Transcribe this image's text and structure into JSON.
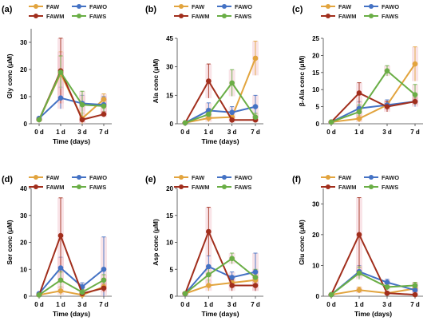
{
  "colors": {
    "FAW": "#E2A43E",
    "FAWO": "#4472C4",
    "FAWM": "#A12E1C",
    "FAWS": "#6AAE46",
    "error_shade": "#F2C4CC"
  },
  "chart_data": [
    {
      "type": "line",
      "panel_label": "(a)",
      "xlabel": "Time (days)",
      "ylabel": "Gly conc (μM)",
      "categories": [
        "0 d",
        "1 d",
        "3 d",
        "7 d"
      ],
      "ylim": [
        0,
        35
      ],
      "yticks": [
        0,
        10,
        20,
        30
      ],
      "legend": [
        "FAW",
        "FAWO",
        "FAWM",
        "FAWS"
      ],
      "series": [
        {
          "name": "FAW",
          "values": [
            1.5,
            18.5,
            2,
            9
          ],
          "errors": [
            0.5,
            8,
            2,
            2
          ]
        },
        {
          "name": "FAWO",
          "values": [
            2,
            9.5,
            7.5,
            7
          ],
          "errors": [
            0.5,
            4,
            3,
            3
          ]
        },
        {
          "name": "FAWM",
          "values": [
            1.5,
            19.5,
            1.5,
            3.5
          ],
          "errors": [
            0.5,
            12,
            1,
            1
          ]
        },
        {
          "name": "FAWS",
          "values": [
            1.5,
            19,
            7,
            6.5
          ],
          "errors": [
            0.5,
            6,
            5,
            3
          ]
        }
      ]
    },
    {
      "type": "line",
      "panel_label": "(b)",
      "xlabel": "Time (days)",
      "ylabel": "Ala conc (μM)",
      "categories": [
        "0 d",
        "1 d",
        "3 d",
        "7 d"
      ],
      "ylim": [
        0,
        45
      ],
      "yticks": [
        0,
        15,
        30,
        45
      ],
      "legend": [
        "FAW",
        "FAWO",
        "FAWM",
        "FAWS"
      ],
      "series": [
        {
          "name": "FAW",
          "values": [
            0.5,
            3,
            3.5,
            34.5
          ],
          "errors": [
            0.3,
            2,
            1.5,
            9
          ]
        },
        {
          "name": "FAWO",
          "values": [
            0.5,
            7,
            6,
            9
          ],
          "errors": [
            0.3,
            4,
            3,
            6
          ]
        },
        {
          "name": "FAWM",
          "values": [
            0.5,
            22.5,
            2,
            2
          ],
          "errors": [
            0.3,
            9,
            1.5,
            1
          ]
        },
        {
          "name": "FAWS",
          "values": [
            0.5,
            5,
            21.5,
            3.5
          ],
          "errors": [
            0.3,
            3,
            7,
            2
          ]
        }
      ]
    },
    {
      "type": "line",
      "panel_label": "(c)",
      "xlabel": "",
      "ylabel": "β-Ala conc (μM)",
      "categories": [
        "0 d",
        "1 d",
        "3 d",
        "7 d"
      ],
      "ylim": [
        0,
        25
      ],
      "yticks": [
        0,
        5,
        10,
        15,
        20,
        25
      ],
      "legend": [
        "FAW",
        "FAWO",
        "FAWM",
        "FAWS"
      ],
      "series": [
        {
          "name": "FAW",
          "values": [
            0.5,
            1.5,
            5.5,
            17.5
          ],
          "errors": [
            0.3,
            1,
            1,
            5
          ]
        },
        {
          "name": "FAWO",
          "values": [
            0.5,
            4.5,
            5.5,
            6.5
          ],
          "errors": [
            0.3,
            2,
            1.5,
            1.5
          ]
        },
        {
          "name": "FAWM",
          "values": [
            0.5,
            9,
            5,
            6.5
          ],
          "errors": [
            0.3,
            3,
            1.5,
            1
          ]
        },
        {
          "name": "FAWS",
          "values": [
            0.5,
            3.5,
            15.5,
            8.5
          ],
          "errors": [
            0.3,
            2,
            1.5,
            3
          ]
        }
      ]
    },
    {
      "type": "line",
      "panel_label": "(d)",
      "xlabel": "Time (days)",
      "ylabel": "Ser conc (μM)",
      "categories": [
        "0 d",
        "1 d",
        "3 d",
        "7 d"
      ],
      "ylim": [
        0,
        40
      ],
      "yticks": [
        0,
        10,
        20,
        30,
        40
      ],
      "legend": [
        "FAW",
        "FAWO",
        "FAWM",
        "FAWS"
      ],
      "series": [
        {
          "name": "FAW",
          "values": [
            0.5,
            2,
            0.5,
            3.5
          ],
          "errors": [
            0.3,
            1.5,
            0.3,
            1.5
          ]
        },
        {
          "name": "FAWO",
          "values": [
            1,
            10.5,
            3.5,
            10
          ],
          "errors": [
            0.3,
            4,
            1.5,
            12
          ]
        },
        {
          "name": "FAWM",
          "values": [
            0.5,
            22.5,
            1,
            3
          ],
          "errors": [
            0.3,
            14,
            0.5,
            1.5
          ]
        },
        {
          "name": "FAWS",
          "values": [
            0.5,
            6,
            1.5,
            6
          ],
          "errors": [
            0.3,
            3,
            1,
            2
          ]
        }
      ]
    },
    {
      "type": "line",
      "panel_label": "(e)",
      "xlabel": "Time (days)",
      "ylabel": "Asp conc (μM)",
      "categories": [
        "0 d",
        "1 d",
        "3 d",
        "7 d"
      ],
      "ylim": [
        0,
        20
      ],
      "yticks": [
        0,
        5,
        10,
        15,
        20
      ],
      "legend": [
        "FAW",
        "FAWO",
        "FAWM",
        "FAWS"
      ],
      "series": [
        {
          "name": "FAW",
          "values": [
            0.5,
            2,
            2.5,
            3
          ],
          "errors": [
            0.3,
            1,
            1,
            1
          ]
        },
        {
          "name": "FAWO",
          "values": [
            0.5,
            5.5,
            3.5,
            4.5
          ],
          "errors": [
            0.3,
            2,
            1,
            3.5
          ]
        },
        {
          "name": "FAWM",
          "values": [
            0.5,
            12,
            2,
            2
          ],
          "errors": [
            0.3,
            4.5,
            1,
            1
          ]
        },
        {
          "name": "FAWS",
          "values": [
            0.5,
            4,
            7,
            3.5
          ],
          "errors": [
            0.3,
            1.5,
            1,
            1.5
          ]
        }
      ]
    },
    {
      "type": "line",
      "panel_label": "(f)",
      "xlabel": "Time (days)",
      "ylabel": "Glu conc (μM)",
      "categories": [
        "0 d",
        "1 d",
        "3 d",
        "7 d"
      ],
      "ylim": [
        0,
        35
      ],
      "yticks": [
        0,
        10,
        20,
        30
      ],
      "legend": [
        "FAW",
        "FAWO",
        "FAWM",
        "FAWS"
      ],
      "series": [
        {
          "name": "FAW",
          "values": [
            0.5,
            2,
            1,
            2.5
          ],
          "errors": [
            0.3,
            1,
            0.5,
            2
          ]
        },
        {
          "name": "FAWO",
          "values": [
            0.5,
            8,
            4.5,
            2
          ],
          "errors": [
            0.3,
            2,
            1,
            1
          ]
        },
        {
          "name": "FAWM",
          "values": [
            0.5,
            20,
            1,
            0.5
          ],
          "errors": [
            0.3,
            12,
            0.5,
            0.3
          ]
        },
        {
          "name": "FAWS",
          "values": [
            0.5,
            7.5,
            3,
            3.5
          ],
          "errors": [
            0.3,
            2,
            1,
            1
          ]
        }
      ]
    }
  ]
}
